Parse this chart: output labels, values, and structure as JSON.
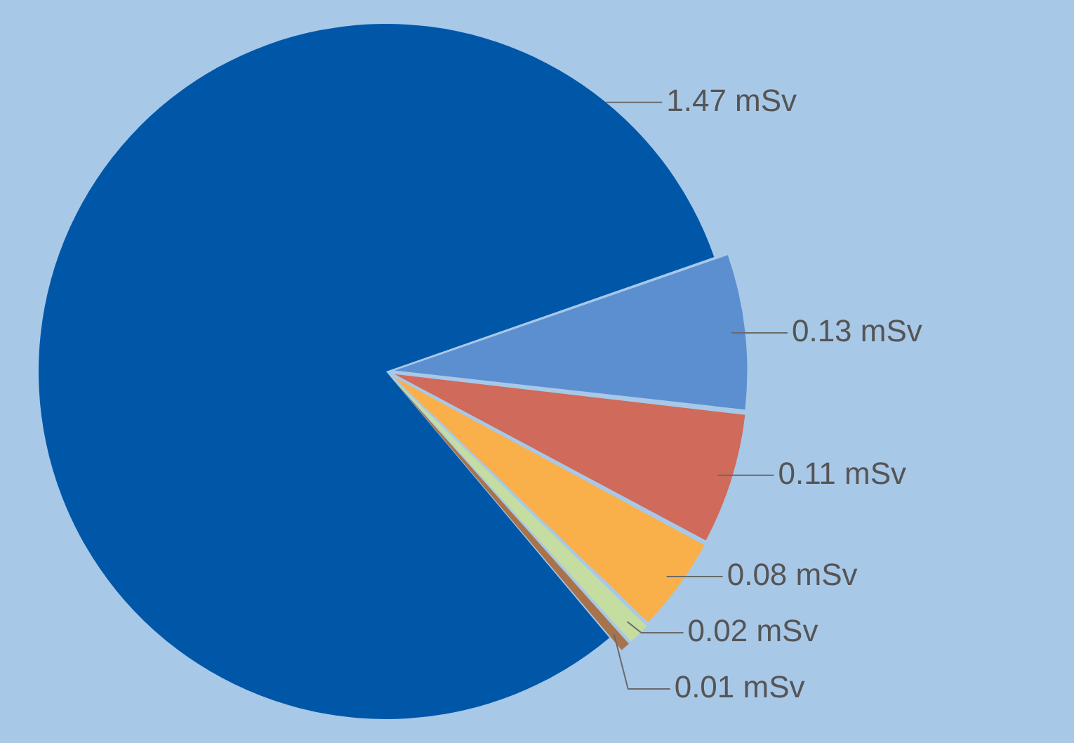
{
  "chart_data": {
    "type": "pie",
    "categories": [
      null,
      null,
      null,
      null,
      null,
      null
    ],
    "values": [
      1.47,
      0.13,
      0.11,
      0.08,
      0.02,
      0.01
    ],
    "colors": [
      "#0057a8",
      "#5b8fd0",
      "#d06a5a",
      "#f9b04a",
      "#c5dda0",
      "#a8734a"
    ],
    "value_labels": [
      "1.47 mSv",
      "0.13 mSv",
      "0.11 mSv",
      "0.08 mSv",
      "0.02 mSv",
      "0.01 mSv"
    ]
  }
}
